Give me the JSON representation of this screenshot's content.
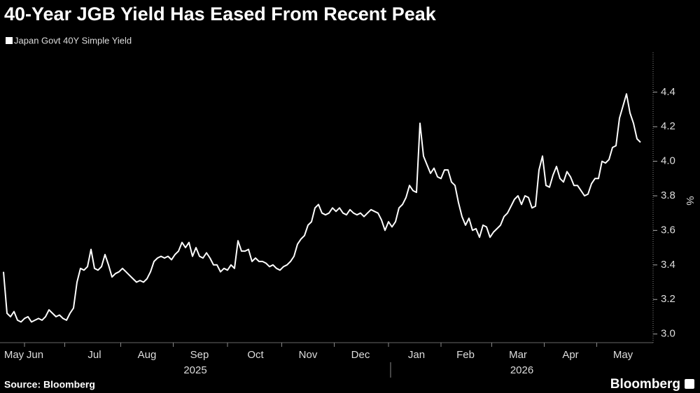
{
  "chart_data": {
    "type": "line",
    "title": "40-Year JGB Yield Has Eased From Recent Peak",
    "source": "Source: Bloomberg",
    "brand": "Bloomberg",
    "y_label": "%",
    "legend_position": "top-left",
    "categories": [
      null,
      null,
      null,
      "May",
      null,
      null,
      null,
      null,
      null,
      "Jun",
      null,
      null,
      null,
      null,
      null,
      null,
      null,
      null,
      null,
      null,
      null,
      null,
      null,
      null,
      null,
      null,
      "Jul",
      null,
      null,
      null,
      null,
      null,
      null,
      null,
      null,
      null,
      null,
      null,
      null,
      null,
      null,
      "Aug",
      null,
      null,
      null,
      null,
      null,
      null,
      null,
      null,
      null,
      null,
      null,
      null,
      null,
      null,
      "Sep",
      null,
      null,
      null,
      null,
      null,
      null,
      null,
      null,
      null,
      null,
      null,
      null,
      null,
      null,
      null,
      "Oct",
      null,
      null,
      null,
      null,
      null,
      null,
      null,
      null,
      null,
      null,
      null,
      null,
      null,
      null,
      "Nov",
      null,
      null,
      null,
      null,
      null,
      null,
      null,
      null,
      null,
      null,
      null,
      null,
      null,
      null,
      "Dec",
      null,
      null,
      null,
      null,
      null,
      null,
      null,
      null,
      null,
      null,
      null,
      null,
      null,
      null,
      null,
      "Jan",
      null,
      null,
      null,
      null,
      null,
      null,
      null,
      null,
      null,
      null,
      null,
      null,
      null,
      "Feb",
      null,
      null,
      null,
      null,
      null,
      null,
      null,
      null,
      null,
      null,
      null,
      null,
      null,
      null,
      "Mar",
      null,
      null,
      null,
      null,
      null,
      null,
      null,
      null,
      null,
      null,
      null,
      null,
      null,
      null,
      "Apr",
      null,
      null,
      null,
      null,
      null,
      null,
      null,
      null,
      null,
      null,
      null,
      null,
      null,
      null,
      "May",
      null,
      null,
      null,
      null,
      null
    ],
    "years": [
      "2025",
      "2026"
    ],
    "series": [
      {
        "name": "Japan Govt 40Y Simple Yield",
        "color": "#ffffff",
        "values": [
          3.36,
          3.12,
          3.1,
          3.13,
          3.08,
          3.07,
          3.09,
          3.1,
          3.07,
          3.08,
          3.09,
          3.08,
          3.1,
          3.14,
          3.12,
          3.1,
          3.11,
          3.09,
          3.08,
          3.12,
          3.15,
          3.3,
          3.38,
          3.37,
          3.39,
          3.49,
          3.38,
          3.37,
          3.39,
          3.46,
          3.4,
          3.33,
          3.35,
          3.36,
          3.38,
          3.36,
          3.34,
          3.32,
          3.3,
          3.31,
          3.3,
          3.32,
          3.36,
          3.42,
          3.44,
          3.45,
          3.44,
          3.45,
          3.43,
          3.46,
          3.48,
          3.53,
          3.5,
          3.53,
          3.45,
          3.5,
          3.45,
          3.44,
          3.47,
          3.44,
          3.4,
          3.4,
          3.36,
          3.38,
          3.37,
          3.4,
          3.38,
          3.54,
          3.48,
          3.48,
          3.49,
          3.42,
          3.44,
          3.42,
          3.42,
          3.41,
          3.39,
          3.4,
          3.38,
          3.37,
          3.39,
          3.4,
          3.42,
          3.45,
          3.52,
          3.55,
          3.57,
          3.63,
          3.65,
          3.73,
          3.75,
          3.7,
          3.69,
          3.7,
          3.73,
          3.71,
          3.73,
          3.7,
          3.69,
          3.72,
          3.7,
          3.69,
          3.7,
          3.68,
          3.7,
          3.72,
          3.71,
          3.7,
          3.66,
          3.6,
          3.65,
          3.62,
          3.65,
          3.73,
          3.75,
          3.79,
          3.86,
          3.83,
          3.82,
          4.22,
          4.03,
          3.98,
          3.93,
          3.96,
          3.91,
          3.9,
          3.95,
          3.95,
          3.88,
          3.86,
          3.76,
          3.68,
          3.63,
          3.67,
          3.6,
          3.61,
          3.56,
          3.63,
          3.62,
          3.56,
          3.59,
          3.61,
          3.63,
          3.68,
          3.7,
          3.74,
          3.78,
          3.8,
          3.75,
          3.8,
          3.79,
          3.73,
          3.74,
          3.95,
          4.03,
          3.86,
          3.85,
          3.92,
          3.97,
          3.9,
          3.88,
          3.94,
          3.91,
          3.86,
          3.86,
          3.83,
          3.8,
          3.81,
          3.87,
          3.9,
          3.9,
          4.0,
          3.99,
          4.01,
          4.08,
          4.09,
          4.25,
          4.32,
          4.39,
          4.28,
          4.22,
          4.13,
          4.11
        ]
      }
    ],
    "ylim": [
      2.95,
      4.63
    ],
    "yticks": [
      {
        "value": 3,
        "label": "3.0"
      },
      3.2,
      3.4,
      3.6,
      3.8,
      {
        "value": 4,
        "label": "4.0"
      },
      4.2,
      4.4
    ]
  }
}
